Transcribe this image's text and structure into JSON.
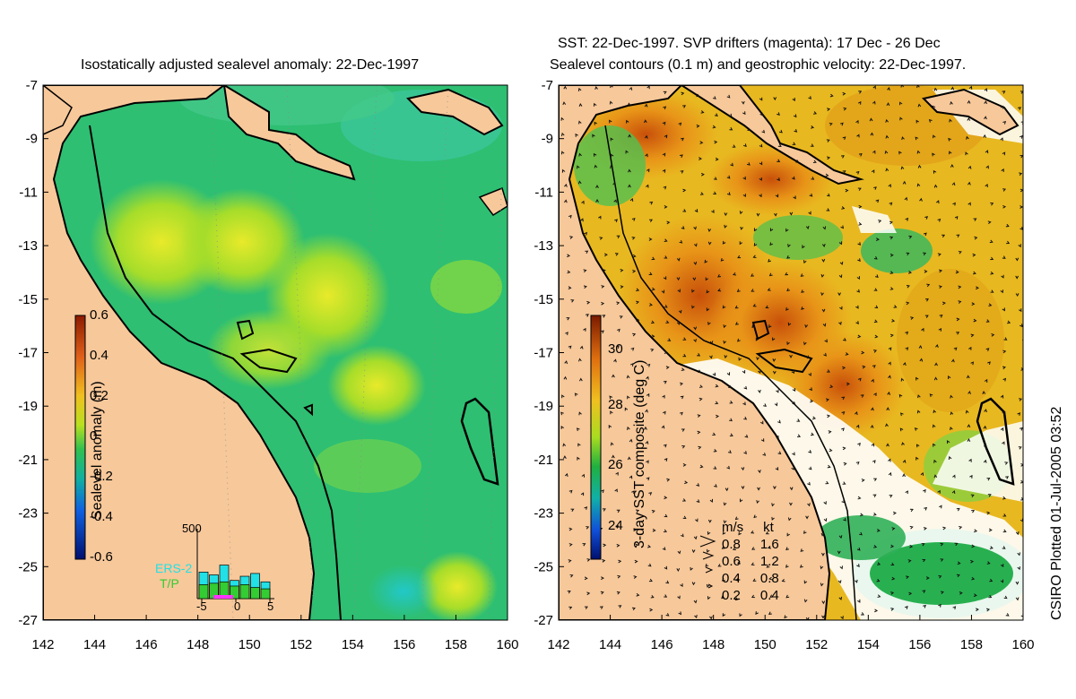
{
  "left_panel": {
    "title": "Isostatically adjusted sealevel anomaly: 22-Dec-1997",
    "x_ticks": [
      "142",
      "144",
      "146",
      "148",
      "150",
      "152",
      "154",
      "156",
      "158",
      "160"
    ],
    "y_ticks": [
      "-7",
      "-9",
      "-11",
      "-13",
      "-15",
      "-17",
      "-19",
      "-21",
      "-23",
      "-25",
      "-27"
    ],
    "colorbar": {
      "label": "Sealevel anomaly (m)",
      "ticks": [
        "0.6",
        "0.4",
        "0.2",
        "0",
        "-0.2",
        "-0.4",
        "-0.6"
      ]
    },
    "inset": {
      "max_label": "500",
      "legend": [
        "ERS-2",
        "T/P"
      ],
      "x_ticks": [
        "-5",
        "0",
        "5"
      ],
      "ers2_values": [
        190,
        170,
        240,
        130,
        160,
        180,
        120
      ],
      "tp_values": [
        100,
        110,
        120,
        90,
        100,
        80,
        70
      ],
      "colors": {
        "ers2": "#22e0e6",
        "tp": "#33cc33",
        "drift": "#ff33ff"
      }
    }
  },
  "right_panel": {
    "title_line1": "SST: 22-Dec-1997. SVP drifters (magenta): 17 Dec - 26 Dec",
    "title_line2": "Sealevel contours (0.1 m) and geostrophic velocity: 22-Dec-1997.",
    "x_ticks": [
      "142",
      "144",
      "146",
      "148",
      "150",
      "152",
      "154",
      "156",
      "158",
      "160"
    ],
    "y_ticks": [
      "-7",
      "-9",
      "-11",
      "-13",
      "-15",
      "-17",
      "-19",
      "-21",
      "-23",
      "-25",
      "-27"
    ],
    "colorbar": {
      "label": "3-day SST composite (deg C)",
      "ticks": [
        "30",
        "28",
        "26",
        "24"
      ]
    },
    "velocity_legend": {
      "header_ms": "m/s",
      "header_kt": "kt",
      "rows": [
        {
          "ms": "0.8",
          "kt": "1.6"
        },
        {
          "ms": "0.6",
          "kt": "1.2"
        },
        {
          "ms": "0.4",
          "kt": "0.8"
        },
        {
          "ms": "0.2",
          "kt": "0.4"
        }
      ]
    }
  },
  "credit": "CSIRO Plotted 01-Jul-2005 03:52",
  "colors": {
    "land": "#f7c89a",
    "ocean_base": "#2ebf72",
    "warm": "#e07a10"
  }
}
